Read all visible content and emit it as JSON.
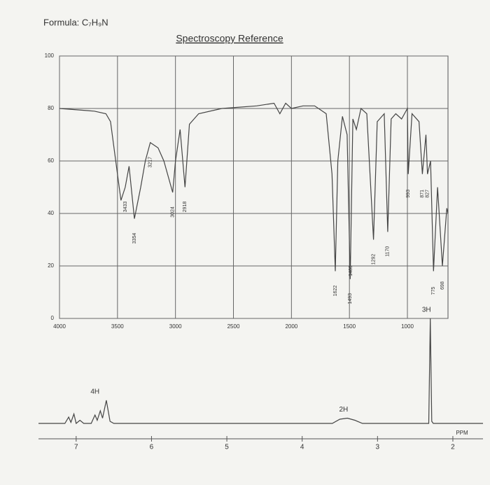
{
  "header": {
    "formula": "Formula: C₇H₉N"
  },
  "chart_data": [
    {
      "type": "line",
      "title": "Spectroscopy Reference",
      "xlim": [
        4000,
        650
      ],
      "xticks": [
        4000,
        3500,
        3000,
        2500,
        2000,
        1500,
        1000
      ],
      "ylim": [
        0,
        100
      ],
      "yticks": [
        0,
        20,
        40,
        60,
        80,
        100
      ],
      "grid": true,
      "x": [
        4000,
        3700,
        3600,
        3560,
        3500,
        3470,
        3433,
        3400,
        3354,
        3300,
        3260,
        3217,
        3150,
        3100,
        3024,
        3000,
        2960,
        2918,
        2880,
        2800,
        2600,
        2300,
        2150,
        2100,
        2050,
        2000,
        1900,
        1800,
        1700,
        1650,
        1622,
        1600,
        1560,
        1520,
        1493,
        1470,
        1440,
        1400,
        1350,
        1292,
        1260,
        1200,
        1170,
        1140,
        1100,
        1050,
        1000,
        993,
        960,
        900,
        871,
        840,
        827,
        800,
        775,
        740,
        698,
        660,
        650
      ],
      "series": [
        {
          "color": "#444444",
          "values": [
            80,
            79,
            78,
            75,
            55,
            45,
            50,
            58,
            38,
            50,
            60,
            67,
            65,
            60,
            48,
            60,
            72,
            50,
            74,
            78,
            80,
            81,
            82,
            78,
            82,
            80,
            81,
            81,
            78,
            55,
            18,
            60,
            77,
            70,
            15,
            76,
            72,
            80,
            78,
            30,
            75,
            78,
            33,
            76,
            78,
            76,
            80,
            55,
            78,
            75,
            55,
            70,
            55,
            60,
            18,
            50,
            20,
            42,
            40
          ]
        }
      ],
      "peak_labels": [
        3433,
        3354,
        3217,
        3024,
        2918,
        1622,
        1493,
        1489,
        1292,
        1170,
        993,
        871,
        827,
        775,
        698
      ]
    },
    {
      "type": "line",
      "xlim": [
        7.5,
        1.6
      ],
      "xticks": [
        7,
        6,
        5,
        4,
        3,
        2
      ],
      "xlabel": "PPM",
      "ylim": [
        0,
        100
      ],
      "x": [
        7.5,
        7.15,
        7.1,
        7.07,
        7.03,
        7.0,
        6.95,
        6.9,
        6.8,
        6.75,
        6.72,
        6.68,
        6.65,
        6.6,
        6.55,
        6.5,
        3.6,
        3.5,
        3.4,
        3.3,
        3.2,
        2.32,
        2.3,
        2.28,
        2.26,
        1.6
      ],
      "series": [
        {
          "color": "#444444",
          "values": [
            0,
            0,
            6,
            1,
            9,
            0,
            3,
            0,
            0,
            8,
            3,
            12,
            5,
            22,
            2,
            0,
            0,
            4,
            5,
            3,
            0,
            0,
            100,
            2,
            0,
            0
          ]
        }
      ],
      "integrations": [
        {
          "label": "4H",
          "x": 6.75
        },
        {
          "label": "2H",
          "x": 3.45
        },
        {
          "label": "3H",
          "x": 2.35
        }
      ]
    }
  ]
}
